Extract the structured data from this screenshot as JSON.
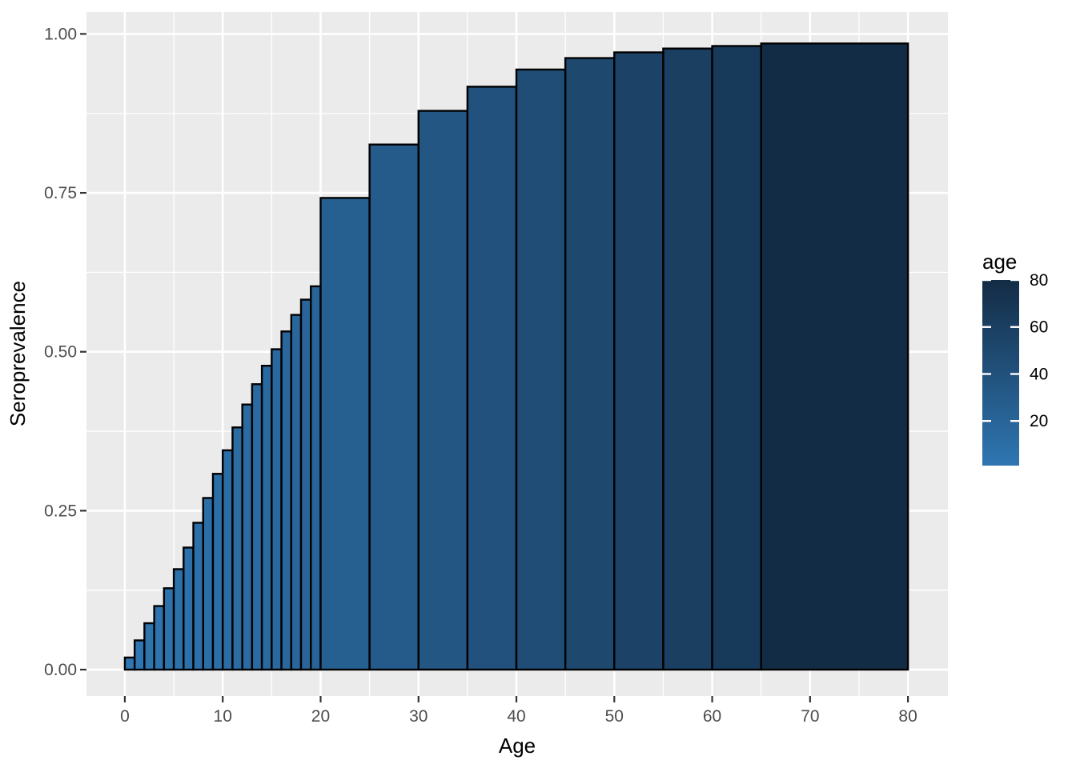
{
  "figure": {
    "background": "#FFFFFF"
  },
  "text_colors": {
    "axis_text": "#4D4D4D",
    "axis_title": "#000000",
    "legend_text": "#000000",
    "tick_mark": "#333333"
  },
  "chart_data": {
    "type": "bar",
    "title": "",
    "xlabel": "Age",
    "ylabel": "Seroprevalence",
    "panel": {
      "background": "#EBEBEB",
      "gridline_color": "#FFFFFF",
      "grid": "on"
    },
    "bars_outline": "#000000",
    "fill_gradient": {
      "low_color": "#2F76B2",
      "high_color": "#132C45",
      "low_age": 1,
      "high_age": 80
    },
    "x_axis": {
      "range": [
        -3.92,
        84.08
      ],
      "ticks": [
        {
          "value": 0,
          "label": "0"
        },
        {
          "value": 10,
          "label": "10"
        },
        {
          "value": 20,
          "label": "20"
        },
        {
          "value": 30,
          "label": "30"
        },
        {
          "value": 40,
          "label": "40"
        },
        {
          "value": 50,
          "label": "50"
        },
        {
          "value": 60,
          "label": "60"
        },
        {
          "value": 70,
          "label": "70"
        },
        {
          "value": 80,
          "label": "80"
        }
      ]
    },
    "y_axis": {
      "range": [
        -0.0415,
        1.0345
      ],
      "ticks": [
        {
          "value": 0.0,
          "label": "0.00"
        },
        {
          "value": 0.25,
          "label": "0.25"
        },
        {
          "value": 0.5,
          "label": "0.50"
        },
        {
          "value": 0.75,
          "label": "0.75"
        },
        {
          "value": 1.0,
          "label": "1.00"
        }
      ]
    },
    "legend": {
      "title": "age",
      "position": "right",
      "ticks": [
        {
          "value": 80,
          "label": "80"
        },
        {
          "value": 60,
          "label": "60"
        },
        {
          "value": 40,
          "label": "40"
        },
        {
          "value": 20,
          "label": "20"
        }
      ]
    },
    "bins": [
      {
        "age_from": 0,
        "age_to": 1,
        "seroprevalence": 0.019
      },
      {
        "age_from": 1,
        "age_to": 2,
        "seroprevalence": 0.046
      },
      {
        "age_from": 2,
        "age_to": 3,
        "seroprevalence": 0.073
      },
      {
        "age_from": 3,
        "age_to": 4,
        "seroprevalence": 0.1
      },
      {
        "age_from": 4,
        "age_to": 5,
        "seroprevalence": 0.128
      },
      {
        "age_from": 5,
        "age_to": 6,
        "seroprevalence": 0.158
      },
      {
        "age_from": 6,
        "age_to": 7,
        "seroprevalence": 0.192
      },
      {
        "age_from": 7,
        "age_to": 8,
        "seroprevalence": 0.231
      },
      {
        "age_from": 8,
        "age_to": 9,
        "seroprevalence": 0.27
      },
      {
        "age_from": 9,
        "age_to": 10,
        "seroprevalence": 0.308
      },
      {
        "age_from": 10,
        "age_to": 11,
        "seroprevalence": 0.345
      },
      {
        "age_from": 11,
        "age_to": 12,
        "seroprevalence": 0.381
      },
      {
        "age_from": 12,
        "age_to": 13,
        "seroprevalence": 0.417
      },
      {
        "age_from": 13,
        "age_to": 14,
        "seroprevalence": 0.449
      },
      {
        "age_from": 14,
        "age_to": 15,
        "seroprevalence": 0.478
      },
      {
        "age_from": 15,
        "age_to": 16,
        "seroprevalence": 0.504
      },
      {
        "age_from": 16,
        "age_to": 17,
        "seroprevalence": 0.532
      },
      {
        "age_from": 17,
        "age_to": 18,
        "seroprevalence": 0.558
      },
      {
        "age_from": 18,
        "age_to": 19,
        "seroprevalence": 0.582
      },
      {
        "age_from": 19,
        "age_to": 20,
        "seroprevalence": 0.603
      },
      {
        "age_from": 20,
        "age_to": 25,
        "seroprevalence": 0.742
      },
      {
        "age_from": 25,
        "age_to": 30,
        "seroprevalence": 0.826
      },
      {
        "age_from": 30,
        "age_to": 35,
        "seroprevalence": 0.879
      },
      {
        "age_from": 35,
        "age_to": 40,
        "seroprevalence": 0.917
      },
      {
        "age_from": 40,
        "age_to": 45,
        "seroprevalence": 0.944
      },
      {
        "age_from": 45,
        "age_to": 50,
        "seroprevalence": 0.962
      },
      {
        "age_from": 50,
        "age_to": 55,
        "seroprevalence": 0.971
      },
      {
        "age_from": 55,
        "age_to": 60,
        "seroprevalence": 0.977
      },
      {
        "age_from": 60,
        "age_to": 65,
        "seroprevalence": 0.981
      },
      {
        "age_from": 65,
        "age_to": 80,
        "seroprevalence": 0.985
      }
    ]
  }
}
